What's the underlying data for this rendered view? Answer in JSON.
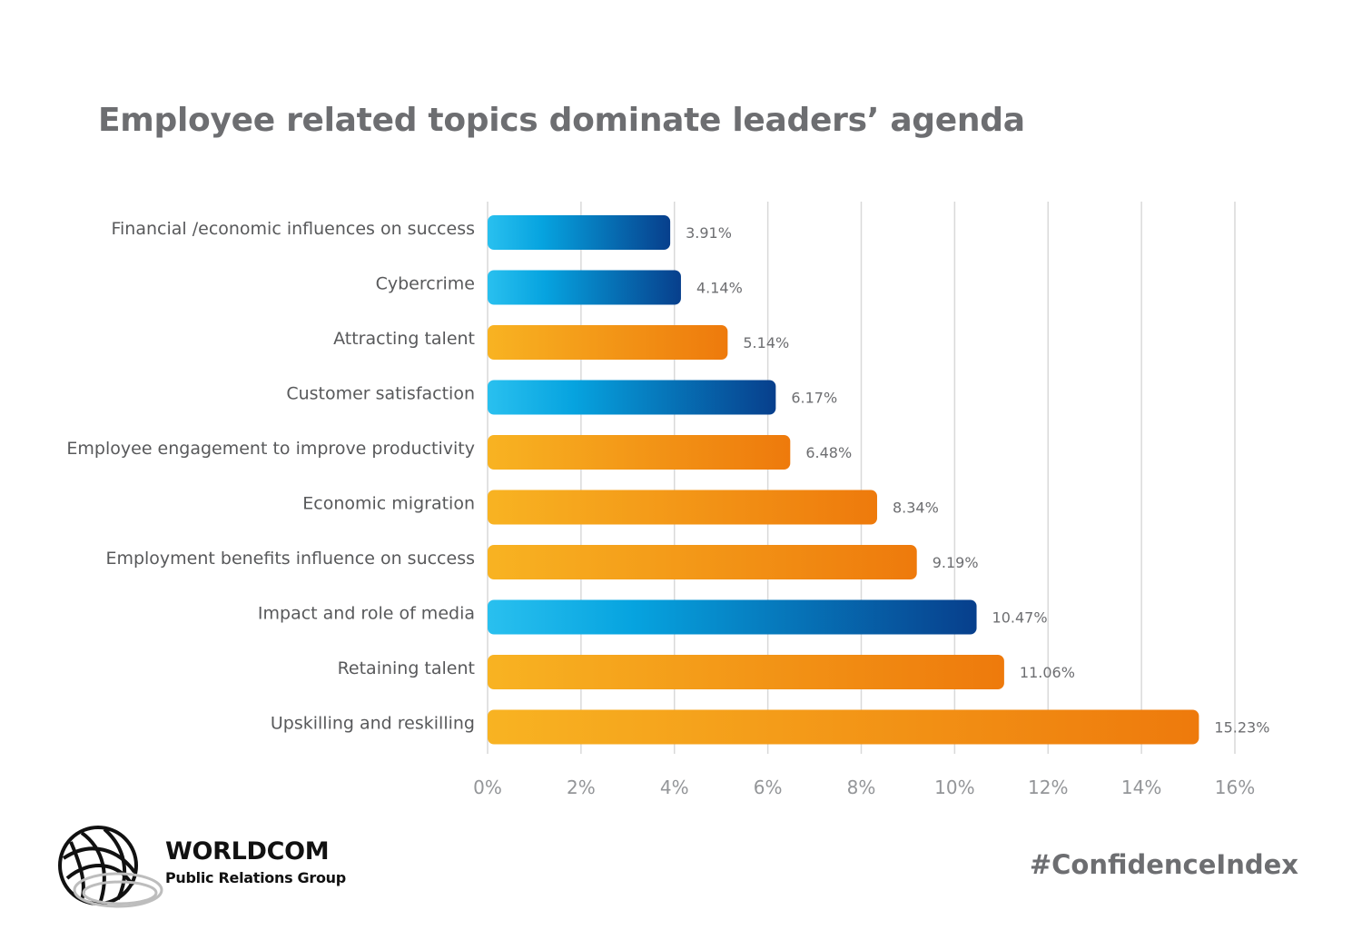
{
  "colors": {
    "blue_start": "#29c0ef",
    "blue_end": "#073f8c",
    "orange_start": "#f8b322",
    "orange_end": "#ee7a0c",
    "text_gray": "#6d6e71"
  },
  "chart_data": {
    "type": "bar",
    "orientation": "horizontal",
    "title": "Employee related topics dominate leaders’ agenda",
    "categories": [
      "Financial /economic influences on success",
      "Cybercrime",
      "Attracting talent",
      "Customer satisfaction",
      "Employee engagement to improve productivity",
      "Economic migration",
      "Employment benefits influence on success",
      "Impact and role of media",
      "Retaining talent",
      "Upskilling and reskilling"
    ],
    "values": [
      3.91,
      4.14,
      5.14,
      6.17,
      6.48,
      8.34,
      9.19,
      10.47,
      11.06,
      15.23
    ],
    "value_labels": [
      "3.91%",
      "4.14%",
      "5.14%",
      "6.17%",
      "6.48%",
      "8.34%",
      "9.19%",
      "10.47%",
      "11.06%",
      "15.23%"
    ],
    "bar_colors": [
      "blue",
      "blue",
      "orange",
      "blue",
      "orange",
      "orange",
      "orange",
      "blue",
      "orange",
      "orange"
    ],
    "xlim": [
      0,
      16
    ],
    "xticks": [
      0,
      2,
      4,
      6,
      8,
      10,
      12,
      14,
      16
    ],
    "xtick_labels": [
      "0%",
      "2%",
      "4%",
      "6%",
      "8%",
      "10%",
      "12%",
      "14%",
      "16%"
    ],
    "grid": true,
    "legend": "none"
  },
  "logo": {
    "name": "WORLDCOM",
    "subtitle": "Public Relations Group",
    "icon": "globe-icon"
  },
  "hashtag": "#ConfidenceIndex"
}
